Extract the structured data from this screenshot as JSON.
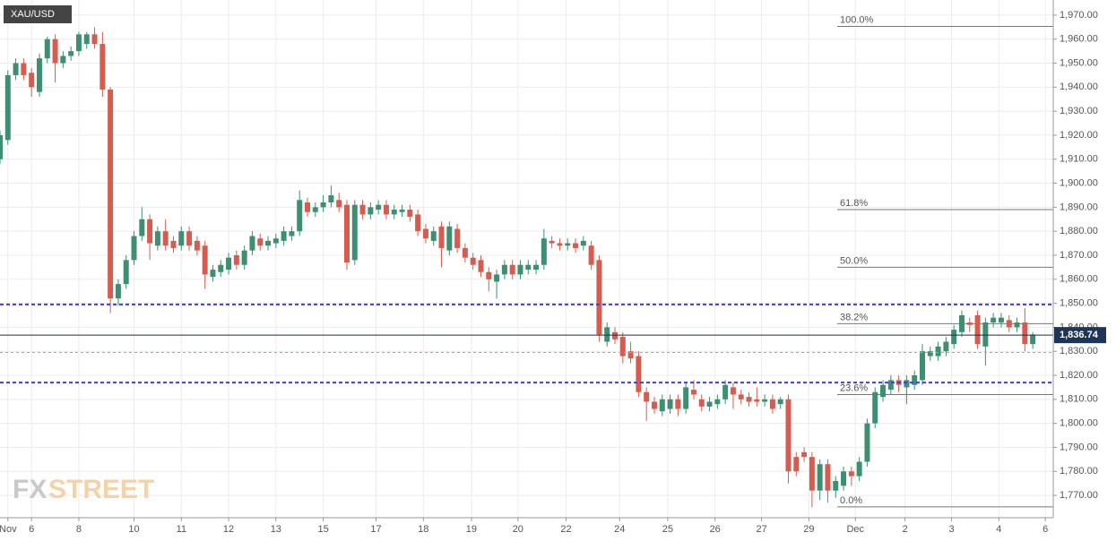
{
  "chart_data": {
    "type": "candlestick",
    "title": "XAU/USD",
    "watermark": {
      "first": "FX",
      "second": "STREET"
    },
    "up_color": "#3c8f70",
    "down_color": "#d55c4f",
    "grid": true,
    "xlim": [
      0,
      133.6
    ],
    "ylim": [
      1760.7,
      1976.3
    ],
    "yticks": [
      {
        "value": 1970,
        "label": "1,970.00"
      },
      {
        "value": 1960,
        "label": "1,960.00"
      },
      {
        "value": 1950,
        "label": "1,950.00"
      },
      {
        "value": 1940,
        "label": "1,940.00"
      },
      {
        "value": 1930,
        "label": "1,930.00"
      },
      {
        "value": 1920,
        "label": "1,920.00"
      },
      {
        "value": 1910,
        "label": "1,910.00"
      },
      {
        "value": 1900,
        "label": "1,900.00"
      },
      {
        "value": 1890,
        "label": "1,890.00"
      },
      {
        "value": 1880,
        "label": "1,880.00"
      },
      {
        "value": 1870,
        "label": "1,870.00"
      },
      {
        "value": 1860,
        "label": "1,860.00"
      },
      {
        "value": 1850,
        "label": "1,850.00"
      },
      {
        "value": 1840,
        "label": "1,840.00"
      },
      {
        "value": 1830,
        "label": "1,830.00"
      },
      {
        "value": 1820,
        "label": "1,820.00"
      },
      {
        "value": 1810,
        "label": "1,810.00"
      },
      {
        "value": 1800,
        "label": "1,800.00"
      },
      {
        "value": 1790,
        "label": "1,790.00"
      },
      {
        "value": 1780,
        "label": "1,780.00"
      },
      {
        "value": 1770,
        "label": "1,770.00"
      }
    ],
    "xticks": [
      {
        "value": 1,
        "label": "Nov"
      },
      {
        "value": 4,
        "label": "6"
      },
      {
        "value": 10,
        "label": "8"
      },
      {
        "value": 17,
        "label": "10"
      },
      {
        "value": 23,
        "label": "11"
      },
      {
        "value": 29,
        "label": "12"
      },
      {
        "value": 35,
        "label": "13"
      },
      {
        "value": 41,
        "label": "15"
      },
      {
        "value": 47.7,
        "label": "17"
      },
      {
        "value": 53.7,
        "label": "18"
      },
      {
        "value": 59.8,
        "label": "19"
      },
      {
        "value": 65.7,
        "label": "20"
      },
      {
        "value": 71.8,
        "label": "22"
      },
      {
        "value": 78.6,
        "label": "24"
      },
      {
        "value": 84.7,
        "label": "25"
      },
      {
        "value": 90.7,
        "label": "26"
      },
      {
        "value": 96.6,
        "label": "27"
      },
      {
        "value": 102.6,
        "label": "29"
      },
      {
        "value": 108.5,
        "label": "Dec"
      },
      {
        "value": 114.8,
        "label": "2"
      },
      {
        "value": 120.7,
        "label": "3"
      },
      {
        "value": 126.7,
        "label": "4"
      },
      {
        "value": 132.6,
        "label": "6"
      }
    ],
    "candles": [
      [
        1910,
        1922,
        1908,
        1920
      ],
      [
        1918,
        1947,
        1916,
        1945
      ],
      [
        1945,
        1952,
        1943,
        1950
      ],
      [
        1950,
        1952,
        1943,
        1945
      ],
      [
        1946,
        1948,
        1936,
        1940
      ],
      [
        1938,
        1954,
        1936,
        1952
      ],
      [
        1952,
        1961,
        1950,
        1960
      ],
      [
        1960,
        1962,
        1942,
        1950
      ],
      [
        1950,
        1955,
        1948,
        1953
      ],
      [
        1953,
        1957,
        1951,
        1955
      ],
      [
        1955,
        1963,
        1953,
        1962
      ],
      [
        1958,
        1963,
        1956,
        1962
      ],
      [
        1962,
        1965,
        1956,
        1958
      ],
      [
        1958,
        1963,
        1936,
        1939
      ],
      [
        1939,
        1940,
        1846,
        1852
      ],
      [
        1852,
        1860,
        1849,
        1858
      ],
      [
        1858,
        1870,
        1856,
        1868
      ],
      [
        1868,
        1880,
        1866,
        1878
      ],
      [
        1878,
        1890,
        1876,
        1885
      ],
      [
        1885,
        1887,
        1868,
        1875
      ],
      [
        1874,
        1882,
        1872,
        1880
      ],
      [
        1880,
        1885,
        1872,
        1874
      ],
      [
        1876,
        1878,
        1871,
        1873
      ],
      [
        1874,
        1882,
        1872,
        1880
      ],
      [
        1880,
        1882,
        1872,
        1874
      ],
      [
        1876,
        1878,
        1870,
        1872
      ],
      [
        1874,
        1876,
        1856,
        1862
      ],
      [
        1861,
        1866,
        1859,
        1864
      ],
      [
        1863,
        1868,
        1861,
        1866
      ],
      [
        1864,
        1871,
        1862,
        1869
      ],
      [
        1870,
        1872,
        1864,
        1866
      ],
      [
        1866,
        1874,
        1864,
        1872
      ],
      [
        1872,
        1880,
        1870,
        1878
      ],
      [
        1877,
        1879,
        1872,
        1874
      ],
      [
        1874,
        1878,
        1872,
        1876
      ],
      [
        1875,
        1879,
        1873,
        1877
      ],
      [
        1876,
        1882,
        1874,
        1880
      ],
      [
        1878,
        1882,
        1876,
        1880
      ],
      [
        1880,
        1897,
        1878,
        1893
      ],
      [
        1892,
        1894,
        1886,
        1888
      ],
      [
        1888,
        1892,
        1886,
        1890
      ],
      [
        1890,
        1895,
        1888,
        1892
      ],
      [
        1892,
        1899,
        1890,
        1895
      ],
      [
        1893,
        1896,
        1888,
        1890
      ],
      [
        1891,
        1893,
        1864,
        1867
      ],
      [
        1868,
        1893,
        1866,
        1891
      ],
      [
        1891,
        1893,
        1885,
        1887
      ],
      [
        1887,
        1892,
        1885,
        1890
      ],
      [
        1889,
        1893,
        1887,
        1891
      ],
      [
        1891,
        1893,
        1885,
        1887
      ],
      [
        1887,
        1891,
        1885,
        1889
      ],
      [
        1888,
        1891,
        1886,
        1889
      ],
      [
        1889,
        1891,
        1884,
        1886
      ],
      [
        1887,
        1889,
        1878,
        1880
      ],
      [
        1881,
        1883,
        1875,
        1877
      ],
      [
        1876,
        1882,
        1874,
        1880
      ],
      [
        1882,
        1884,
        1865,
        1873
      ],
      [
        1872,
        1884,
        1870,
        1882
      ],
      [
        1881,
        1883,
        1871,
        1873
      ],
      [
        1873,
        1875,
        1867,
        1869
      ],
      [
        1869,
        1871,
        1864,
        1866
      ],
      [
        1868,
        1870,
        1861,
        1863
      ],
      [
        1863,
        1865,
        1855,
        1860
      ],
      [
        1859,
        1864,
        1852,
        1862
      ],
      [
        1862,
        1868,
        1860,
        1866
      ],
      [
        1866,
        1868,
        1860,
        1862
      ],
      [
        1862,
        1868,
        1860,
        1866
      ],
      [
        1864,
        1868,
        1862,
        1866
      ],
      [
        1864,
        1868,
        1862,
        1866
      ],
      [
        1866,
        1881,
        1864,
        1877
      ],
      [
        1876,
        1878,
        1873,
        1875
      ],
      [
        1875,
        1877,
        1872,
        1874
      ],
      [
        1874,
        1877,
        1872,
        1875
      ],
      [
        1875,
        1877,
        1871,
        1873
      ],
      [
        1874,
        1878,
        1872,
        1876
      ],
      [
        1874,
        1876,
        1864,
        1866
      ],
      [
        1868,
        1870,
        1834,
        1837
      ],
      [
        1834,
        1842,
        1832,
        1840
      ],
      [
        1838,
        1840,
        1833,
        1835
      ],
      [
        1836,
        1838,
        1825,
        1828
      ],
      [
        1830,
        1834,
        1825,
        1827
      ],
      [
        1828,
        1830,
        1811,
        1813
      ],
      [
        1813,
        1815,
        1801,
        1809
      ],
      [
        1809,
        1811,
        1804,
        1806
      ],
      [
        1805,
        1812,
        1803,
        1810
      ],
      [
        1806,
        1812,
        1804,
        1810
      ],
      [
        1810,
        1812,
        1803,
        1806
      ],
      [
        1806,
        1817,
        1804,
        1815
      ],
      [
        1814,
        1818,
        1810,
        1812
      ],
      [
        1810,
        1812,
        1805,
        1807
      ],
      [
        1807,
        1811,
        1805,
        1809
      ],
      [
        1808,
        1812,
        1806,
        1810
      ],
      [
        1810,
        1818,
        1808,
        1816
      ],
      [
        1815,
        1817,
        1806,
        1812
      ],
      [
        1812,
        1814,
        1808,
        1810
      ],
      [
        1811,
        1813,
        1807,
        1809
      ],
      [
        1810,
        1815,
        1807,
        1809
      ],
      [
        1809,
        1812,
        1807,
        1810
      ],
      [
        1810,
        1812,
        1804,
        1806
      ],
      [
        1808,
        1811,
        1806,
        1810
      ],
      [
        1810,
        1812,
        1775,
        1780
      ],
      [
        1786,
        1788,
        1778,
        1780
      ],
      [
        1788,
        1790,
        1784,
        1786
      ],
      [
        1786,
        1788,
        1765,
        1772
      ],
      [
        1772,
        1785,
        1768,
        1783
      ],
      [
        1783,
        1785,
        1767,
        1772
      ],
      [
        1772,
        1778,
        1769,
        1776
      ],
      [
        1774,
        1782,
        1772,
        1780
      ],
      [
        1780,
        1782,
        1774,
        1778
      ],
      [
        1778,
        1786,
        1776,
        1784
      ],
      [
        1784,
        1802,
        1782,
        1800
      ],
      [
        1800,
        1815,
        1798,
        1813
      ],
      [
        1811,
        1818,
        1809,
        1816
      ],
      [
        1814,
        1820,
        1812,
        1818
      ],
      [
        1818,
        1820,
        1813,
        1816
      ],
      [
        1815,
        1820,
        1808,
        1818
      ],
      [
        1816,
        1822,
        1814,
        1820
      ],
      [
        1818,
        1833,
        1816,
        1830
      ],
      [
        1828,
        1832,
        1826,
        1830
      ],
      [
        1828,
        1834,
        1826,
        1832
      ],
      [
        1830,
        1836,
        1828,
        1834
      ],
      [
        1833,
        1841,
        1831,
        1839
      ],
      [
        1838,
        1847,
        1836,
        1845
      ],
      [
        1842,
        1844,
        1838,
        1841
      ],
      [
        1845,
        1847,
        1831,
        1833
      ],
      [
        1832,
        1844,
        1824,
        1842
      ],
      [
        1842,
        1846,
        1840,
        1844
      ],
      [
        1842,
        1846,
        1840,
        1844
      ],
      [
        1843,
        1845,
        1838,
        1840
      ],
      [
        1840,
        1844,
        1838,
        1842
      ],
      [
        1842,
        1848,
        1830,
        1833
      ],
      [
        1833,
        1838,
        1831,
        1837
      ]
    ],
    "horizontal_lines": [
      1849.5,
      1817,
      1829.5
    ],
    "fibonacci": [
      {
        "value": 1965.3,
        "label": "100.0%"
      },
      {
        "value": 1889,
        "label": "61.8%"
      },
      {
        "value": 1865,
        "label": "50.0%"
      },
      {
        "value": 1841.5,
        "label": "38.2%"
      },
      {
        "value": 1812,
        "label": "23.6%"
      },
      {
        "value": 1765.2,
        "label": "0.0%"
      }
    ],
    "fib_start": 106.2,
    "last_price": {
      "value": 1836.74,
      "label": "1,836.74"
    }
  }
}
